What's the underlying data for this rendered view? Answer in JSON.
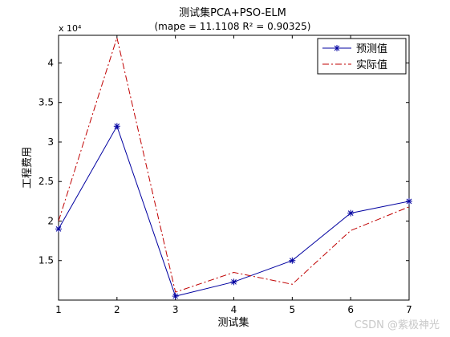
{
  "chart_data": {
    "type": "line",
    "title": "测试集PCA+PSO-ELM",
    "subtitle": "(mape = 11.1108 R² = 0.90325)",
    "xlabel": "测试集",
    "ylabel": "工程费用",
    "y_multiplier": "x 10⁴",
    "x": [
      1,
      2,
      3,
      4,
      5,
      6,
      7
    ],
    "xlim": [
      1,
      7
    ],
    "ylim": [
      1.0,
      4.35
    ],
    "y_scale": 10000,
    "x_ticks": [
      "1",
      "2",
      "3",
      "4",
      "5",
      "6",
      "7"
    ],
    "y_ticks": [
      1.5,
      2,
      2.5,
      3,
      3.5,
      4
    ],
    "y_tick_labels": [
      "1.5",
      "2",
      "2.5",
      "3",
      "3.5",
      "4"
    ],
    "grid": false,
    "legend_position": "top-right",
    "series": [
      {
        "name": "预测值",
        "color": "#0000a0",
        "style": "solid",
        "marker": "asterisk",
        "values": [
          1.9,
          3.2,
          1.05,
          1.23,
          1.5,
          2.1,
          2.25
        ]
      },
      {
        "name": "实际值",
        "color": "#c00000",
        "style": "dashdot",
        "marker": "none",
        "values": [
          2.0,
          4.32,
          1.1,
          1.35,
          1.2,
          1.88,
          2.18
        ]
      }
    ]
  },
  "watermark": "CSDN @紫极神光"
}
